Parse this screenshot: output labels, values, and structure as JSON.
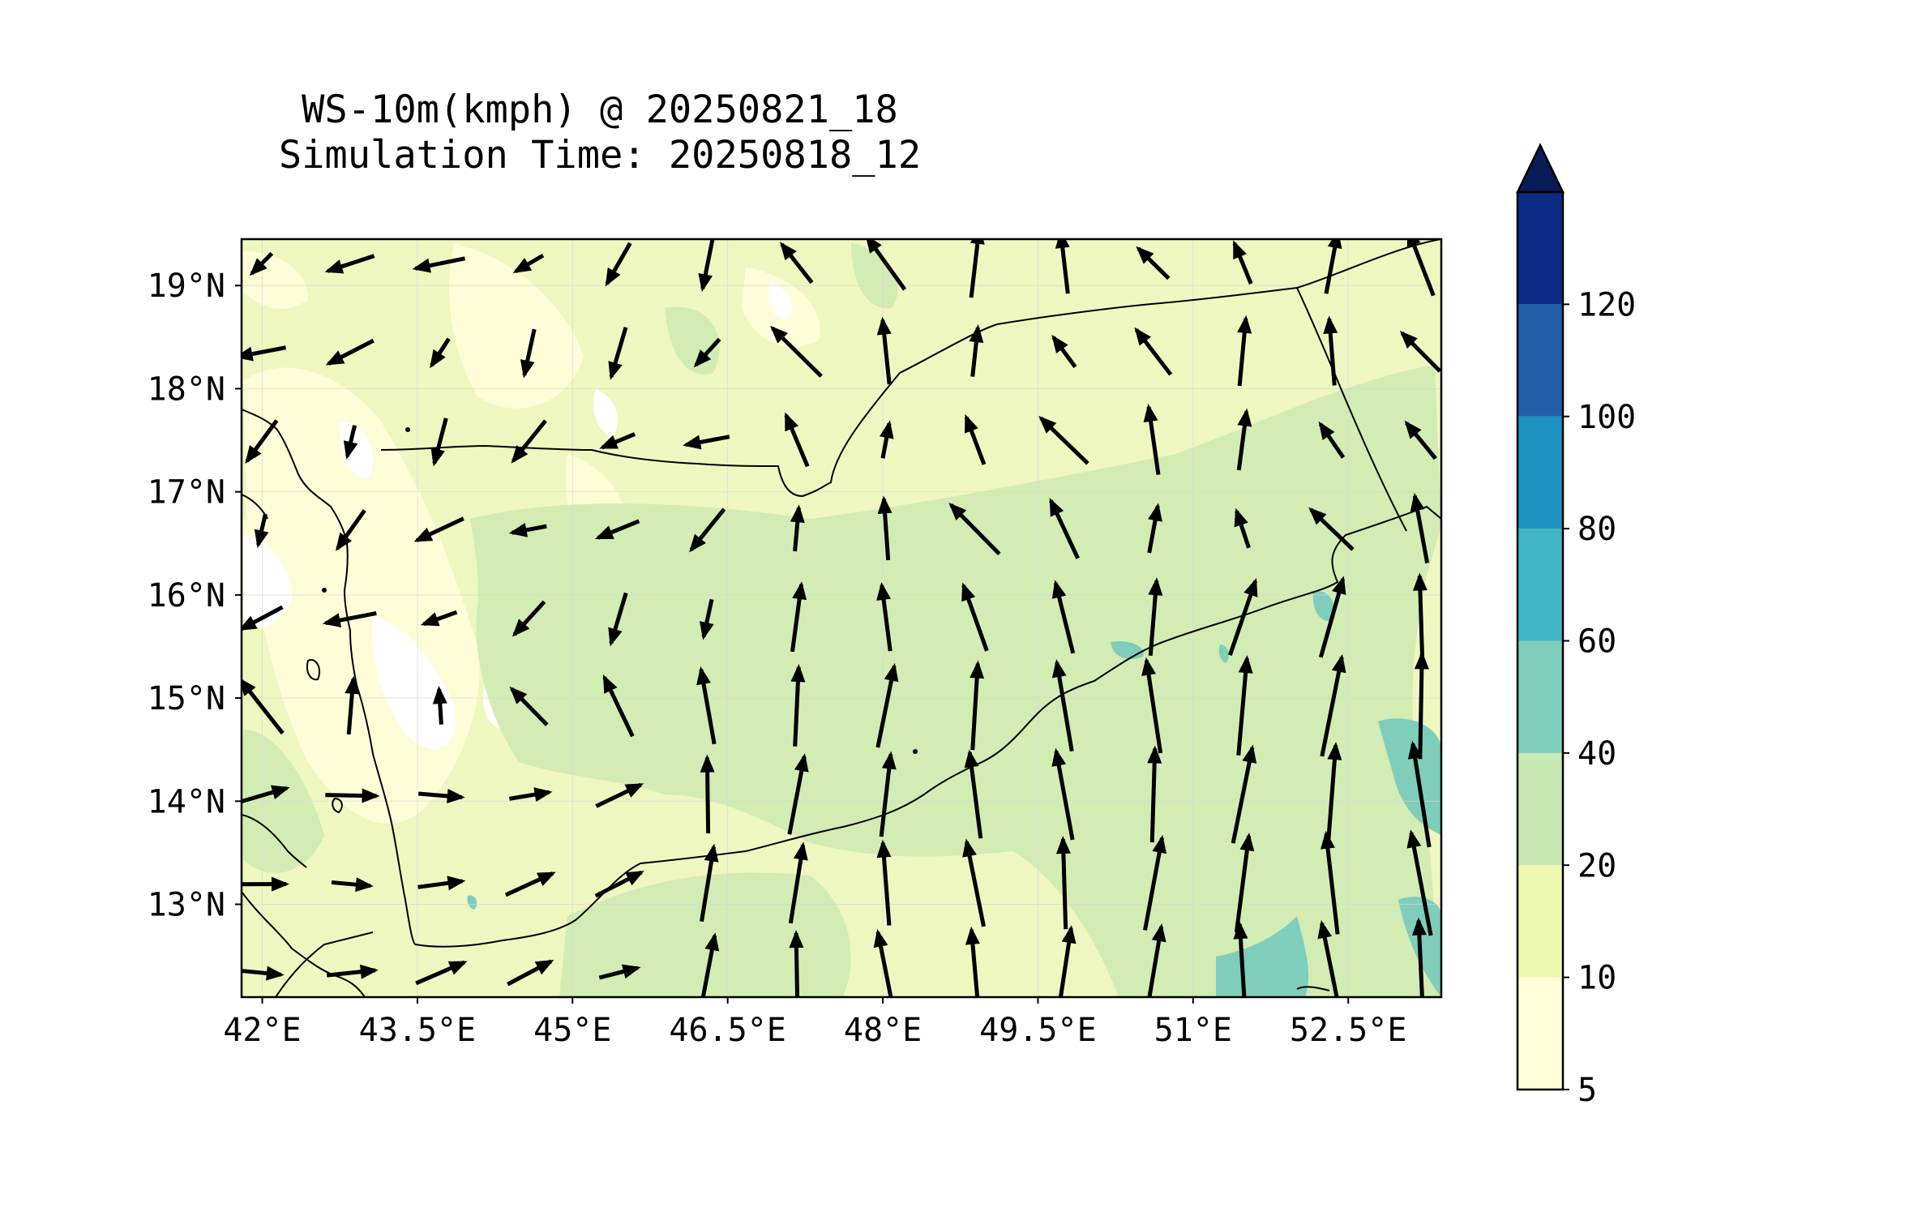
{
  "title": {
    "line1": "WS-10m(kmph) @ 20250821_18",
    "line2": "Simulation Time: 20250818_12"
  },
  "map": {
    "lon_range": [
      41.8,
      53.4
    ],
    "lat_range": [
      12.1,
      19.45
    ],
    "x_ticks": [
      {
        "value": 42.0,
        "label": "42°E"
      },
      {
        "value": 43.5,
        "label": "43.5°E"
      },
      {
        "value": 45.0,
        "label": "45°E"
      },
      {
        "value": 46.5,
        "label": "46.5°E"
      },
      {
        "value": 48.0,
        "label": "48°E"
      },
      {
        "value": 49.5,
        "label": "49.5°E"
      },
      {
        "value": 51.0,
        "label": "51°E"
      },
      {
        "value": 52.5,
        "label": "52.5°E"
      }
    ],
    "y_ticks": [
      {
        "value": 13,
        "label": "13°N"
      },
      {
        "value": 14,
        "label": "14°N"
      },
      {
        "value": 15,
        "label": "15°N"
      },
      {
        "value": 16,
        "label": "16°N"
      },
      {
        "value": 17,
        "label": "17°N"
      },
      {
        "value": 18,
        "label": "18°N"
      },
      {
        "value": 19,
        "label": "19°N"
      }
    ],
    "grid": true
  },
  "colorbar": {
    "levels": [
      5,
      10,
      20,
      40,
      60,
      80,
      100,
      120
    ],
    "labels": [
      "5",
      "10",
      "20",
      "40",
      "60",
      "80",
      "100",
      "120"
    ],
    "colors": [
      "#ffffd9",
      "#edf8b1",
      "#c7e9b4",
      "#7fcdbb",
      "#41b6c4",
      "#1d91c0",
      "#225ea8",
      "#0c2c84"
    ],
    "extend_color": "#081d58",
    "extend": "max"
  },
  "colors": {
    "land_base": "#eef7c0",
    "mid_zone": "#d3ecb3",
    "teal": "#7fcdbb",
    "coast_line": "#000000",
    "arrow": "#000000"
  }
}
